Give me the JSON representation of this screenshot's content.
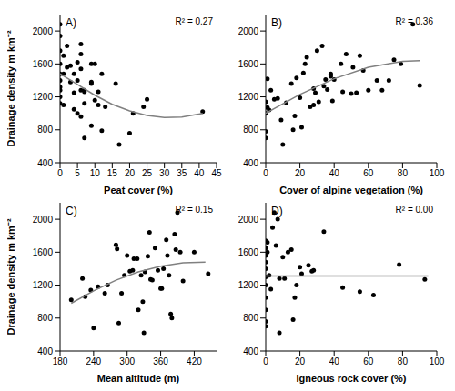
{
  "chart_data": [
    {
      "type": "scatter",
      "title": "A)",
      "annotation": "R² = 0.27",
      "x_label": "Peat cover (%)",
      "y_label": "Drainage density m km⁻²",
      "color": "#000000",
      "marker": "circle",
      "x": [
        0,
        0,
        0,
        0,
        0,
        0,
        0,
        0,
        0,
        0,
        1,
        1,
        1,
        2,
        2,
        3,
        3,
        4,
        4,
        4,
        5,
        5,
        5,
        6,
        6,
        6,
        6,
        6,
        7,
        7,
        7,
        7,
        9,
        9,
        9,
        9,
        10,
        10,
        11,
        11,
        12,
        12,
        13,
        16,
        17,
        20,
        21,
        24,
        25,
        41
      ],
      "values": [
        2080,
        1940,
        1760,
        1600,
        1480,
        1400,
        1280,
        1200,
        1120,
        1320,
        1700,
        1480,
        1100,
        1820,
        1560,
        1380,
        1580,
        1480,
        1250,
        1050,
        1620,
        1400,
        1000,
        1840,
        1720,
        1540,
        1280,
        960,
        1280,
        1260,
        1120,
        700,
        1600,
        1360,
        1380,
        850,
        1600,
        1160,
        1260,
        1100,
        1480,
        790,
        1080,
        1360,
        620,
        760,
        1000,
        1080,
        1170,
        1020
      ],
      "trend": {
        "color": "#808080",
        "x": [
          0,
          5,
          10,
          15,
          20,
          25,
          30,
          35,
          41
        ],
        "values": [
          1480,
          1350,
          1220,
          1110,
          1030,
          975,
          950,
          955,
          1000
        ]
      },
      "xlim": [
        0,
        45
      ],
      "xticks": [
        0,
        5,
        10,
        15,
        20,
        25,
        30,
        35,
        40,
        45
      ],
      "ylim": [
        400,
        2200
      ],
      "yticks": [
        400,
        800,
        1200,
        1600,
        2000
      ]
    },
    {
      "type": "scatter",
      "title": "B)",
      "annotation": "R² = 0.36",
      "x_label": "Cover of alpine vegetation (%)",
      "color": "#000000",
      "marker": "circle",
      "x": [
        0,
        0,
        0,
        0,
        1,
        1,
        2,
        3,
        5,
        7,
        9,
        10,
        12,
        15,
        16,
        17,
        18,
        20,
        21,
        22,
        23,
        24,
        26,
        28,
        28,
        29,
        30,
        31,
        33,
        34,
        35,
        36,
        38,
        38,
        39,
        40,
        44,
        45,
        47,
        50,
        51,
        53,
        55,
        57,
        60,
        65,
        68,
        72,
        75,
        79,
        86,
        90
      ],
      "values": [
        1140,
        1000,
        780,
        700,
        1420,
        1070,
        1040,
        1280,
        1170,
        1180,
        920,
        620,
        1130,
        1360,
        800,
        970,
        1430,
        1190,
        830,
        1490,
        1600,
        1680,
        1080,
        1300,
        1100,
        1250,
        1760,
        1140,
        1820,
        1330,
        1410,
        1290,
        1450,
        1480,
        1150,
        1410,
        1600,
        1260,
        1720,
        1240,
        1560,
        1250,
        1700,
        1520,
        1280,
        1400,
        1280,
        1400,
        1650,
        1600,
        2080,
        1340
      ],
      "trend": {
        "color": "#808080",
        "x": [
          0,
          20,
          40,
          60,
          80,
          90
        ],
        "values": [
          1000,
          1230,
          1420,
          1560,
          1630,
          1640
        ]
      },
      "xlim": [
        0,
        100
      ],
      "xticks": [
        0,
        20,
        40,
        60,
        80,
        100
      ],
      "ylim": [
        400,
        2200
      ],
      "yticks": [
        400,
        800,
        1200,
        1600,
        2000
      ]
    },
    {
      "type": "scatter",
      "title": "C)",
      "annotation": "R² = 0.15",
      "x_label": "Mean altitude (m)",
      "y_label": "Drainage density m km⁻²",
      "color": "#000000",
      "marker": "circle",
      "x": [
        200,
        220,
        225,
        235,
        240,
        248,
        260,
        265,
        280,
        282,
        285,
        290,
        295,
        300,
        305,
        310,
        312,
        318,
        320,
        325,
        328,
        330,
        332,
        337,
        340,
        342,
        345,
        350,
        355,
        360,
        362,
        365,
        370,
        372,
        375,
        378,
        380,
        385,
        387,
        390,
        395,
        400,
        420,
        445
      ],
      "values": [
        1020,
        1280,
        1060,
        1140,
        680,
        1180,
        1100,
        1200,
        1690,
        1640,
        740,
        1100,
        1320,
        1560,
        1370,
        1380,
        1520,
        1520,
        900,
        1320,
        1000,
        620,
        1360,
        1550,
        1840,
        1270,
        1260,
        1650,
        1380,
        1160,
        1160,
        1400,
        1750,
        1560,
        1320,
        850,
        800,
        1820,
        1630,
        2080,
        1600,
        1250,
        1600,
        1340
      ],
      "trend": {
        "color": "#808080",
        "x": [
          200,
          240,
          280,
          320,
          360,
          400,
          440
        ],
        "values": [
          980,
          1130,
          1260,
          1360,
          1430,
          1470,
          1480
        ]
      },
      "xlim": [
        180,
        460
      ],
      "xticks": [
        180,
        240,
        300,
        360,
        420
      ],
      "ylim": [
        400,
        2200
      ],
      "yticks": [
        400,
        800,
        1200,
        1600,
        2000
      ]
    },
    {
      "type": "scatter",
      "title": "D)",
      "annotation": "R² = 0.00",
      "x_label": "Igneous rock cover (%)",
      "color": "#000000",
      "marker": "circle",
      "x": [
        0,
        0,
        0,
        0,
        0,
        0,
        0,
        0,
        0,
        0,
        0,
        1,
        1,
        2,
        3,
        4,
        5,
        6,
        7,
        8,
        8,
        10,
        11,
        13,
        15,
        16,
        17,
        18,
        20,
        21,
        25,
        27,
        28,
        34,
        45,
        55,
        63,
        78,
        93
      ],
      "values": [
        1740,
        1650,
        1560,
        1480,
        1400,
        1300,
        1200,
        1050,
        900,
        760,
        700,
        1720,
        1600,
        1320,
        1150,
        1900,
        2080,
        1680,
        2000,
        1280,
        620,
        1540,
        1280,
        1600,
        1630,
        780,
        1050,
        1200,
        1420,
        1340,
        1440,
        1370,
        1380,
        1850,
        1170,
        1120,
        1080,
        1450,
        1270
      ],
      "trend": {
        "color": "#808080",
        "x": [
          0,
          95
        ],
        "values": [
          1310,
          1310
        ]
      },
      "xlim": [
        0,
        100
      ],
      "xticks": [
        0,
        20,
        40,
        60,
        80,
        100
      ],
      "ylim": [
        400,
        2200
      ],
      "yticks": [
        400,
        800,
        1200,
        1600,
        2000
      ]
    }
  ]
}
